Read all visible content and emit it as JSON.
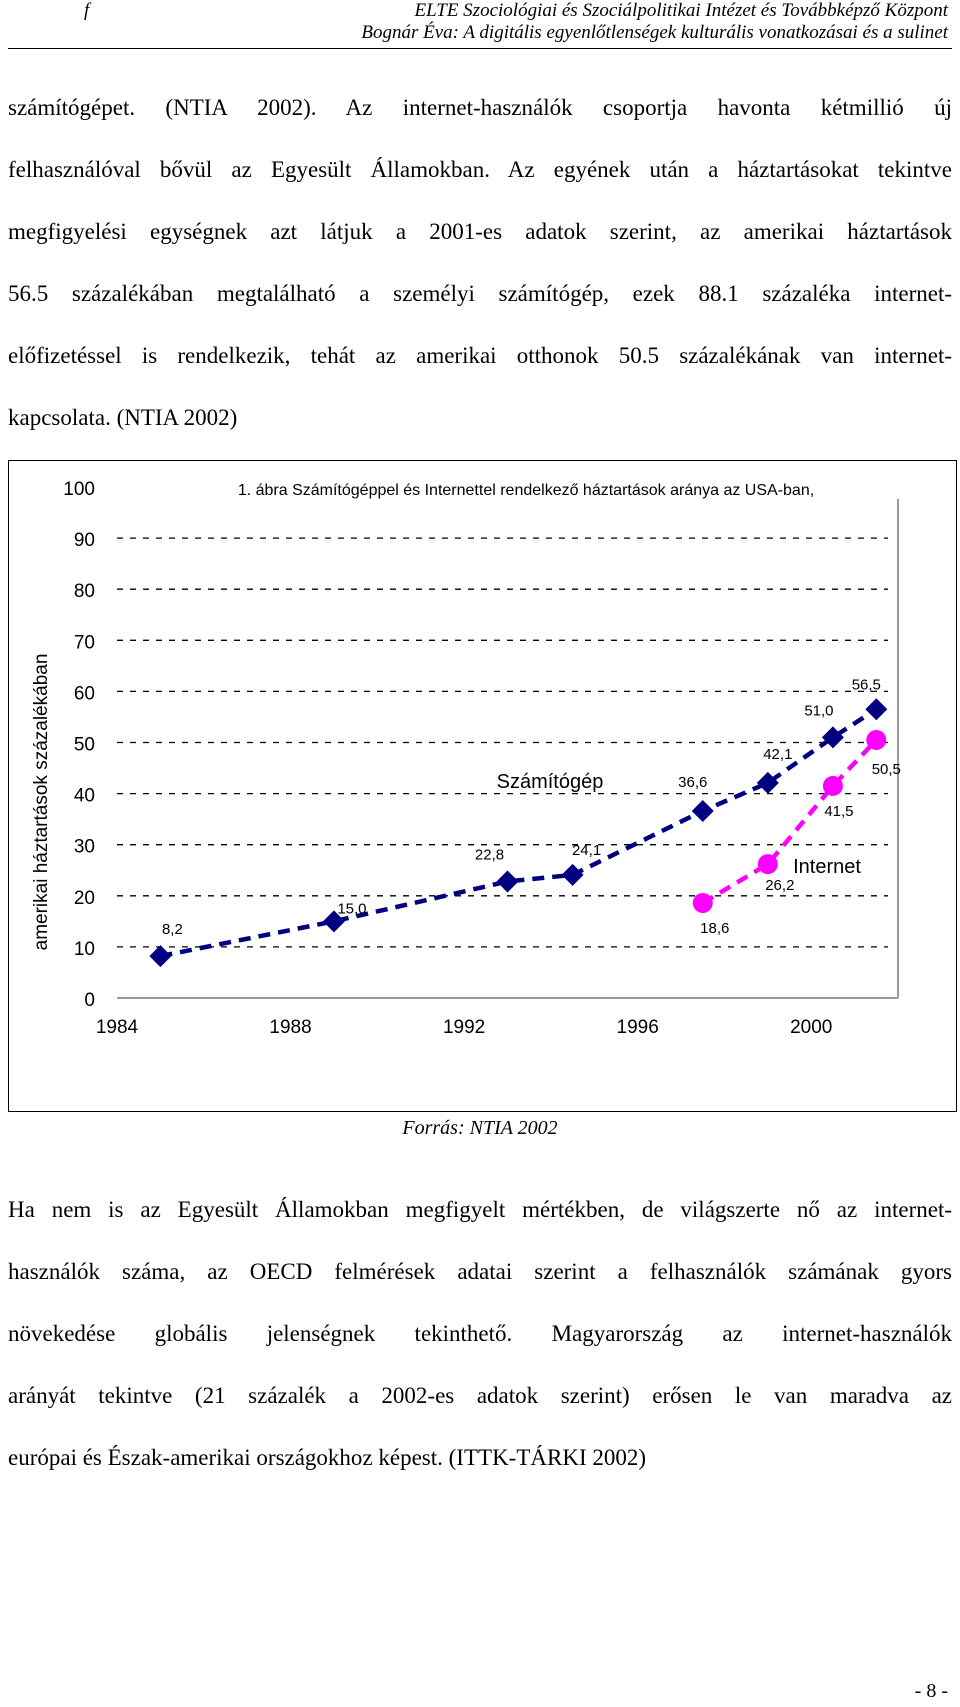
{
  "header": {
    "left_mark": "f",
    "line1": "ELTE Szociológiai és Szociálpolitikai Intézet és Továbbképző Központ",
    "line2": "Bognár Éva: A digitális egyenlőtlenségek kulturális vonatkozásai és a sulinet"
  },
  "paragraph1": [
    "számítógépet. (NTIA 2002). Az internet-használók csoportja havonta kétmillió új",
    "felhasználóval bővül az Egyesült Államokban. Az egyének után a háztartásokat tekintve",
    "megfigyelési egységnek azt látjuk a 2001-es adatok szerint, az amerikai háztartások",
    "56.5 százalékában megtalálható a személyi számítógép, ezek 88.1 százaléka internet-",
    "előfizetéssel is rendelkezik, tehát az amerikai otthonok 50.5 százalékának van internet-",
    "kapcsolata. (NTIA 2002)"
  ],
  "chart_data": {
    "type": "line",
    "title": "1. ábra Számítógéppel és Internettel rendelkező háztartások aránya az USA-ban,",
    "ylabel": "amerikai háztartások százalékában",
    "xlabel": "",
    "ylim": [
      0,
      100
    ],
    "xlim": [
      1984,
      2002
    ],
    "yticks": [
      "0",
      "10",
      "20",
      "30",
      "40",
      "50",
      "60",
      "70",
      "80",
      "90",
      "100"
    ],
    "xticks": [
      "1984",
      "1988",
      "1992",
      "1996",
      "2000"
    ],
    "grid": "horizontal dashed",
    "series": [
      {
        "name": "Számítógép",
        "color": "#000080",
        "marker": "diamond",
        "x": [
          1985,
          1989,
          1993,
          1994.5,
          1997.5,
          1999,
          2000.5,
          2001.5
        ],
        "values": [
          8.2,
          15.0,
          22.8,
          24.1,
          36.6,
          42.1,
          51.0,
          56.5
        ],
        "labels": [
          "8,2",
          "15,0",
          "22,8",
          "24,1",
          "36,6",
          "42,1",
          "51,0",
          "56,5"
        ]
      },
      {
        "name": "Internet",
        "color": "#ff00ff",
        "marker": "circle",
        "x": [
          1997.5,
          1999,
          2000.5,
          2001.5
        ],
        "values": [
          18.6,
          26.2,
          41.5,
          50.5
        ],
        "labels": [
          "18,6",
          "26,2",
          "41,5",
          "50,5"
        ]
      }
    ]
  },
  "source_caption": "Forrás: NTIA 2002",
  "paragraph2": [
    "Ha nem is az Egyesült Államokban megfigyelt mértékben, de világszerte nő az internet-",
    "használók száma, az OECD felmérések adatai szerint a felhasználók számának gyors",
    "növekedése globális jelenségnek tekinthető. Magyarország az internet-használók",
    "arányát tekintve (21 százalék a 2002-es adatok szerint) erősen le van maradva az",
    "európai és Észak-amerikai országokhoz képest. (ITTK-TÁRKI 2002)"
  ],
  "page_number": "- 8 -"
}
